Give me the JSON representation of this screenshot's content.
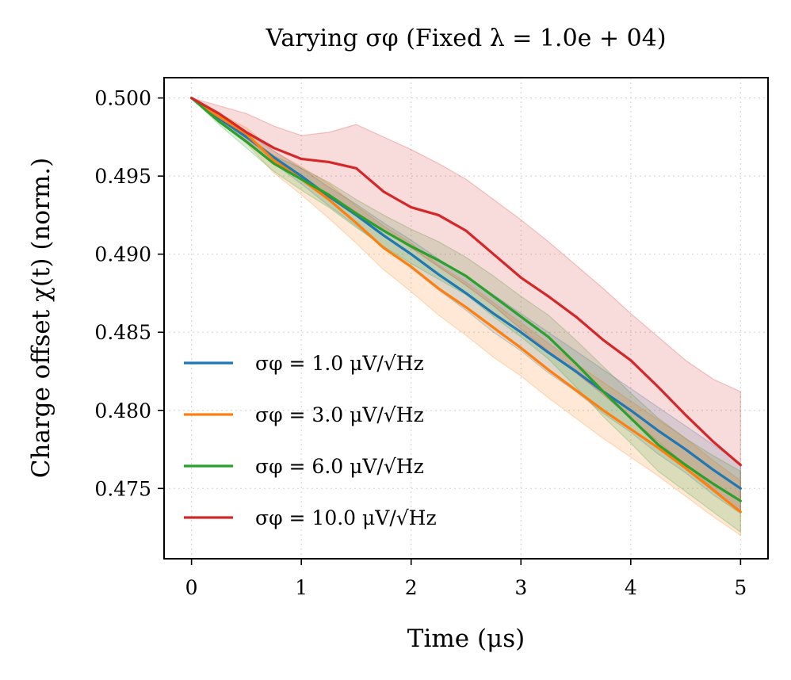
{
  "chart_data": {
    "type": "line",
    "title": "Varying σφ (Fixed λ = 1.0e + 04)",
    "xlabel": "Time (μs)",
    "ylabel": "Charge offset χ(t) (norm.)",
    "xlim": [
      -0.25,
      5.25
    ],
    "ylim": [
      0.4705,
      0.5013
    ],
    "xticks": [
      0,
      1,
      2,
      3,
      4,
      5
    ],
    "xtick_labels": [
      "0",
      "1",
      "2",
      "3",
      "4",
      "5"
    ],
    "yticks": [
      0.475,
      0.48,
      0.485,
      0.49,
      0.495,
      0.5
    ],
    "ytick_labels": [
      "0.475",
      "0.480",
      "0.485",
      "0.490",
      "0.495",
      "0.500"
    ],
    "grid": true,
    "legend_position": "lower-left",
    "x": [
      0,
      0.25,
      0.5,
      0.75,
      1,
      1.25,
      1.5,
      1.75,
      2,
      2.25,
      2.5,
      2.75,
      3,
      3.25,
      3.5,
      3.75,
      4,
      4.25,
      4.5,
      4.75,
      5
    ],
    "series": [
      {
        "name": "σφ = 1.0 μV/√Hz",
        "color": "#1f77b4",
        "values": [
          0.5,
          0.4987,
          0.4975,
          0.4962,
          0.495,
          0.4937,
          0.4925,
          0.4912,
          0.49,
          0.4887,
          0.4875,
          0.4862,
          0.485,
          0.4837,
          0.4825,
          0.4812,
          0.48,
          0.4787,
          0.4775,
          0.4762,
          0.475
        ],
        "upper": [
          0.5,
          0.4989,
          0.4978,
          0.4966,
          0.4955,
          0.4943,
          0.4932,
          0.492,
          0.4909,
          0.4897,
          0.4886,
          0.4874,
          0.4862,
          0.485,
          0.4838,
          0.4826,
          0.4814,
          0.4802,
          0.479,
          0.4778,
          0.4766
        ],
        "lower": [
          0.5,
          0.4985,
          0.4972,
          0.4958,
          0.4945,
          0.4931,
          0.4918,
          0.4904,
          0.4891,
          0.4877,
          0.4864,
          0.485,
          0.4838,
          0.4824,
          0.4812,
          0.4798,
          0.4786,
          0.4772,
          0.476,
          0.4746,
          0.4734
        ]
      },
      {
        "name": "σφ = 3.0 μV/√Hz",
        "color": "#ff7f0e",
        "values": [
          0.5,
          0.4988,
          0.4977,
          0.496,
          0.4948,
          0.4935,
          0.492,
          0.4904,
          0.4892,
          0.4878,
          0.4866,
          0.4853,
          0.484,
          0.4826,
          0.4813,
          0.48,
          0.4788,
          0.4776,
          0.4763,
          0.4749,
          0.4735
        ],
        "upper": [
          0.5,
          0.499,
          0.4981,
          0.4966,
          0.4956,
          0.4945,
          0.4931,
          0.4918,
          0.4907,
          0.4893,
          0.4882,
          0.4869,
          0.4856,
          0.4843,
          0.483,
          0.4818,
          0.4806,
          0.4794,
          0.4782,
          0.4768,
          0.4755
        ],
        "lower": [
          0.5,
          0.4985,
          0.4971,
          0.4952,
          0.4938,
          0.4923,
          0.4907,
          0.489,
          0.4876,
          0.4861,
          0.4848,
          0.4834,
          0.4822,
          0.4808,
          0.4795,
          0.4782,
          0.477,
          0.4758,
          0.4745,
          0.4732,
          0.472
        ]
      },
      {
        "name": "σφ = 6.0 μV/√Hz",
        "color": "#2ca02c",
        "values": [
          0.5,
          0.4985,
          0.4972,
          0.4958,
          0.4948,
          0.4938,
          0.4926,
          0.4915,
          0.4905,
          0.4896,
          0.4886,
          0.4873,
          0.486,
          0.4847,
          0.483,
          0.4812,
          0.4795,
          0.4778,
          0.4765,
          0.4753,
          0.4742
        ],
        "upper": [
          0.5,
          0.4987,
          0.4976,
          0.4963,
          0.4955,
          0.4946,
          0.4935,
          0.4925,
          0.4916,
          0.4908,
          0.4898,
          0.4886,
          0.4873,
          0.4861,
          0.4845,
          0.4828,
          0.4811,
          0.4795,
          0.4782,
          0.4771,
          0.4761
        ],
        "lower": [
          0.5,
          0.4983,
          0.4968,
          0.4953,
          0.4941,
          0.493,
          0.4917,
          0.4905,
          0.4894,
          0.4884,
          0.4874,
          0.486,
          0.4847,
          0.4833,
          0.4815,
          0.4796,
          0.4779,
          0.4761,
          0.4748,
          0.4735,
          0.4722
        ]
      },
      {
        "name": "σφ = 10.0 μV/√Hz",
        "color": "#d62728",
        "values": [
          0.5,
          0.499,
          0.4978,
          0.4968,
          0.4961,
          0.4959,
          0.4955,
          0.494,
          0.493,
          0.4925,
          0.4915,
          0.49,
          0.4885,
          0.4873,
          0.486,
          0.4845,
          0.4832,
          0.4815,
          0.4797,
          0.478,
          0.4765
        ],
        "upper": [
          0.5,
          0.4995,
          0.499,
          0.4982,
          0.4976,
          0.4978,
          0.4983,
          0.4975,
          0.4967,
          0.4958,
          0.4948,
          0.4935,
          0.4922,
          0.4908,
          0.4893,
          0.4878,
          0.4862,
          0.4847,
          0.4832,
          0.482,
          0.4812
        ],
        "lower": [
          0.5,
          0.4986,
          0.4972,
          0.4958,
          0.4948,
          0.4938,
          0.4927,
          0.4915,
          0.4904,
          0.4892,
          0.488,
          0.4867,
          0.4852,
          0.4838,
          0.4824,
          0.481,
          0.4795,
          0.478,
          0.4765,
          0.475,
          0.4735
        ]
      }
    ]
  }
}
